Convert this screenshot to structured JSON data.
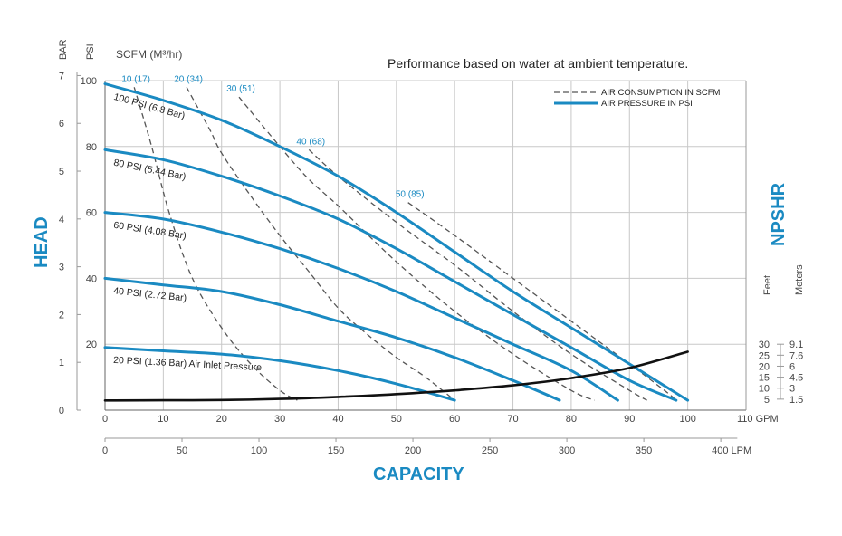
{
  "chart_data": {
    "type": "line",
    "title": "Performance based on water at ambient temperature.",
    "xlabel": "CAPACITY",
    "ylabel": "HEAD",
    "y2label": "NPSHR",
    "scfm_header": "SCFM (M³/hr)",
    "x_gpm": {
      "min": 0,
      "max": 110,
      "ticks": [
        "0",
        "10",
        "20",
        "30",
        "40",
        "50",
        "60",
        "70",
        "80",
        "90",
        "100",
        "110 GPM"
      ]
    },
    "x_lpm": {
      "ticks": [
        "0",
        "50",
        "100",
        "150",
        "200",
        "250",
        "300",
        "350",
        "400 LPM"
      ],
      "values": [
        0,
        50,
        100,
        150,
        200,
        250,
        300,
        350,
        400
      ]
    },
    "y_psi": {
      "unit": "PSI",
      "min": 0,
      "max": 100,
      "ticks": [
        "20",
        "40",
        "60",
        "80",
        "100"
      ],
      "values": [
        20,
        40,
        60,
        80,
        100
      ]
    },
    "y_bar": {
      "unit": "BAR",
      "ticks": [
        "0",
        "1",
        "2",
        "3",
        "4",
        "5",
        "6",
        "7"
      ],
      "values": [
        0,
        1,
        2,
        3,
        4,
        5,
        6,
        7
      ]
    },
    "npshr_feet": {
      "unit": "Feet",
      "ticks": [
        "5",
        "10",
        "15",
        "20",
        "25",
        "30"
      ],
      "values": [
        5,
        10,
        15,
        20,
        25,
        30
      ]
    },
    "npshr_meters": {
      "unit": "Meters",
      "ticks": [
        "1.5",
        "3",
        "4.5",
        "6",
        "7.6",
        "9.1"
      ]
    },
    "npshr_curve": [
      [
        0,
        4.4
      ],
      [
        10,
        4.5
      ],
      [
        20,
        4.6
      ],
      [
        30,
        5.1
      ],
      [
        40,
        6.0
      ],
      [
        50,
        7.3
      ],
      [
        60,
        9.0
      ],
      [
        70,
        11.3
      ],
      [
        80,
        14.6
      ],
      [
        90,
        19.2
      ],
      [
        100,
        26.6
      ]
    ],
    "series": [
      {
        "name": "100 PSI (6.8 Bar)",
        "label": "100 PSI (6.8 Bar)",
        "points": [
          [
            0,
            99
          ],
          [
            10,
            94
          ],
          [
            20,
            88
          ],
          [
            30,
            80
          ],
          [
            40,
            71
          ],
          [
            50,
            60
          ],
          [
            60,
            48
          ],
          [
            70,
            36
          ],
          [
            80,
            25
          ],
          [
            90,
            14
          ],
          [
            100,
            3
          ]
        ]
      },
      {
        "name": "80 PSI (5.44 Bar)",
        "label": "80 PSI (5.44 Bar)",
        "points": [
          [
            0,
            79
          ],
          [
            10,
            76
          ],
          [
            20,
            71
          ],
          [
            30,
            65
          ],
          [
            40,
            58
          ],
          [
            50,
            49
          ],
          [
            60,
            39
          ],
          [
            70,
            29
          ],
          [
            80,
            19
          ],
          [
            90,
            9
          ],
          [
            98,
            3
          ]
        ]
      },
      {
        "name": "60 PSI (4.08 Bar)",
        "label": "60 PSI (4.08 Bar)",
        "points": [
          [
            0,
            60
          ],
          [
            10,
            58
          ],
          [
            20,
            54
          ],
          [
            30,
            49
          ],
          [
            40,
            43
          ],
          [
            50,
            36
          ],
          [
            60,
            28
          ],
          [
            70,
            20
          ],
          [
            80,
            12
          ],
          [
            88,
            3
          ]
        ]
      },
      {
        "name": "40 PSI (2.72 Bar)",
        "label": "40 PSI (2.72 Bar)",
        "points": [
          [
            0,
            40
          ],
          [
            10,
            38
          ],
          [
            20,
            36
          ],
          [
            30,
            32
          ],
          [
            40,
            27
          ],
          [
            50,
            22
          ],
          [
            60,
            16
          ],
          [
            70,
            9
          ],
          [
            78,
            3
          ]
        ]
      },
      {
        "name": "20 PSI (1.36 Bar) Air Inlet Pressure",
        "label": "20 PSI (1.36 Bar) Air Inlet Pressure",
        "points": [
          [
            0,
            19
          ],
          [
            10,
            18
          ],
          [
            20,
            17
          ],
          [
            30,
            15
          ],
          [
            40,
            12
          ],
          [
            50,
            8
          ],
          [
            60,
            3
          ]
        ]
      }
    ],
    "air_consumption": [
      {
        "name": "10 (17)",
        "label": "10 (17)",
        "points": [
          [
            5,
            98
          ],
          [
            8,
            80
          ],
          [
            11,
            60
          ],
          [
            15,
            40
          ],
          [
            20,
            25
          ],
          [
            25,
            14
          ],
          [
            30,
            6
          ],
          [
            33,
            3
          ]
        ]
      },
      {
        "name": "20 (34)",
        "label": "20 (34)",
        "points": [
          [
            14,
            98
          ],
          [
            18,
            85
          ],
          [
            20,
            78
          ],
          [
            25,
            65
          ],
          [
            30,
            53
          ],
          [
            35,
            42
          ],
          [
            40,
            31
          ],
          [
            45,
            23
          ],
          [
            50,
            16
          ],
          [
            55,
            10
          ],
          [
            60,
            3
          ]
        ]
      },
      {
        "name": "30 (51)",
        "label": "30 (51)",
        "points": [
          [
            23,
            95
          ],
          [
            30,
            80
          ],
          [
            35,
            70
          ],
          [
            40,
            62
          ],
          [
            50,
            45
          ],
          [
            60,
            30
          ],
          [
            70,
            17
          ],
          [
            80,
            6
          ],
          [
            84,
            3
          ]
        ]
      },
      {
        "name": "40 (68)",
        "label": "40 (68)",
        "points": [
          [
            35,
            79
          ],
          [
            40,
            71
          ],
          [
            50,
            57
          ],
          [
            60,
            44
          ],
          [
            70,
            30
          ],
          [
            80,
            17
          ],
          [
            90,
            6
          ],
          [
            93,
            3
          ]
        ]
      },
      {
        "name": "50 (85)",
        "label": "50 (85)",
        "points": [
          [
            52,
            63
          ],
          [
            60,
            53
          ],
          [
            70,
            40
          ],
          [
            80,
            27
          ],
          [
            90,
            14
          ],
          [
            96,
            6
          ],
          [
            98,
            3
          ]
        ]
      }
    ],
    "legend": [
      {
        "label": "AIR CONSUMPTION IN SCFM",
        "style": "dashed"
      },
      {
        "label": "AIR PRESSURE IN PSI",
        "style": "solid"
      }
    ],
    "legend_position": "top-right",
    "grid": true
  },
  "colors": {
    "accent": "#1a8ac2",
    "curve": "#1a8ac2",
    "npshr": "#111111",
    "dash": "#555555",
    "grid": "#c8c8c8"
  }
}
